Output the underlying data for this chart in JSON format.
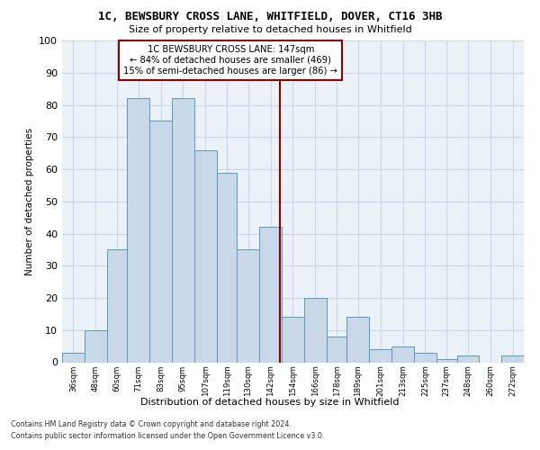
{
  "title_line1": "1C, BEWSBURY CROSS LANE, WHITFIELD, DOVER, CT16 3HB",
  "title_line2": "Size of property relative to detached houses in Whitfield",
  "xlabel": "Distribution of detached houses by size in Whitfield",
  "ylabel": "Number of detached properties",
  "categories": [
    "36sqm",
    "48sqm",
    "60sqm",
    "71sqm",
    "83sqm",
    "95sqm",
    "107sqm",
    "119sqm",
    "130sqm",
    "142sqm",
    "154sqm",
    "166sqm",
    "178sqm",
    "189sqm",
    "201sqm",
    "213sqm",
    "225sqm",
    "237sqm",
    "248sqm",
    "260sqm",
    "272sqm"
  ],
  "values": [
    3,
    10,
    35,
    82,
    75,
    82,
    66,
    59,
    35,
    42,
    14,
    20,
    8,
    14,
    4,
    5,
    3,
    1,
    2,
    0,
    2
  ],
  "bar_color": "#c8d8e8",
  "bar_edge_color": "#5a9abf",
  "property_line_color": "#8b0000",
  "annotation_text": "1C BEWSBURY CROSS LANE: 147sqm\n← 84% of detached houses are smaller (469)\n15% of semi-detached houses are larger (86) →",
  "annotation_box_color": "#ffffff",
  "annotation_box_edge_color": "#8b0000",
  "ylim": [
    0,
    100
  ],
  "yticks": [
    0,
    10,
    20,
    30,
    40,
    50,
    60,
    70,
    80,
    90,
    100
  ],
  "grid_color": "#c8d8e8",
  "bg_color": "#eaf2f8",
  "footer_line1": "Contains HM Land Registry data © Crown copyright and database right 2024.",
  "footer_line2": "Contains public sector information licensed under the Open Government Licence v3.0.",
  "bin_edges": [
    30,
    42,
    54,
    65,
    77,
    89,
    101,
    113,
    124,
    136,
    148,
    160,
    172,
    183,
    195,
    207,
    219,
    231,
    242,
    254,
    266,
    278
  ],
  "property_sqm": 147
}
